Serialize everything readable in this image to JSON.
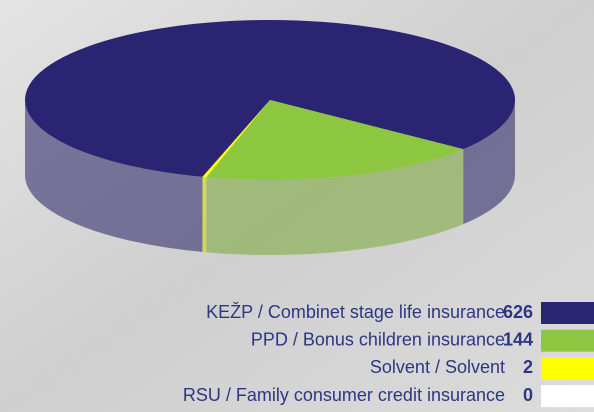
{
  "chart_data": {
    "type": "pie",
    "categories": [
      "KEŽP / Combinet stage life insurance",
      "PPD / Bonus children insurance",
      "Solvent / Solvent",
      "RSU / Family consumer credit insurance"
    ],
    "values": [
      626,
      144,
      2,
      0
    ],
    "colors": [
      "#2a2473",
      "#8dc63f",
      "#ffff00",
      "#ffffff"
    ]
  }
}
